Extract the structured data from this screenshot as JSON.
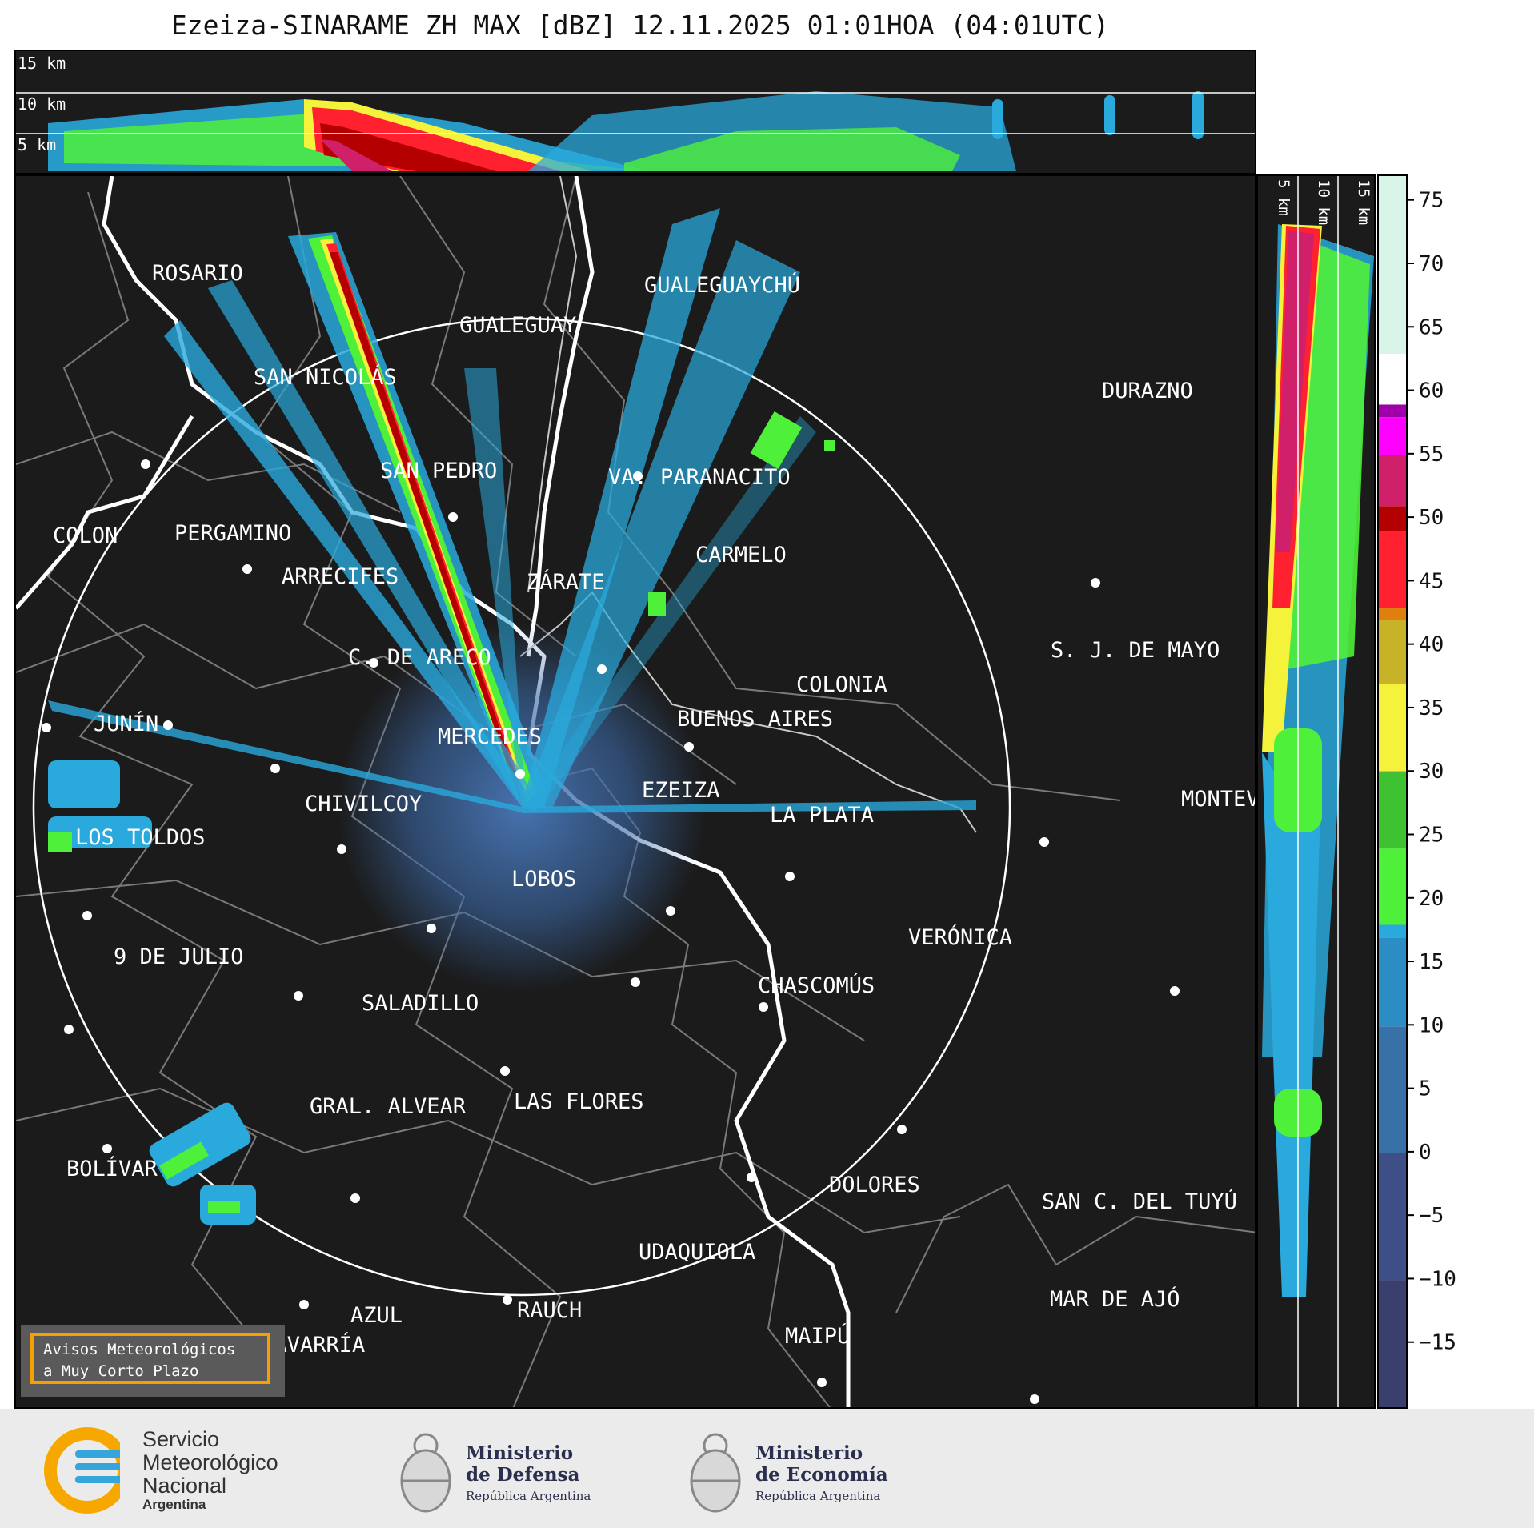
{
  "title": "Ezeiza-SINARAME ZH MAX [dBZ] 12.11.2025 01:01HOA (04:01UTC)",
  "height_labels": [
    "15 km",
    "10 km",
    "5 km"
  ],
  "colorbar": {
    "ticks": [
      "75",
      "70",
      "65",
      "60",
      "55",
      "50",
      "45",
      "40",
      "35",
      "30",
      "25",
      "20",
      "15",
      "10",
      "5",
      "0",
      "−5",
      "−10",
      "−15"
    ],
    "range": [
      -20,
      77
    ],
    "unit": "dBZ",
    "stops": [
      {
        "v": -20,
        "color": "#3b3f6e"
      },
      {
        "v": -10,
        "color": "#3d4f86"
      },
      {
        "v": 0,
        "color": "#3870a8"
      },
      {
        "v": 10,
        "color": "#2c8cc4"
      },
      {
        "v": 17,
        "color": "#29a9dc"
      },
      {
        "v": 18,
        "color": "#4ff03a"
      },
      {
        "v": 24,
        "color": "#3ec232"
      },
      {
        "v": 30,
        "color": "#236e22"
      },
      {
        "v": 30.1,
        "color": "#f4f23a"
      },
      {
        "v": 37,
        "color": "#c8b228"
      },
      {
        "v": 42,
        "color": "#e07f10"
      },
      {
        "v": 43,
        "color": "#ff2030"
      },
      {
        "v": 49,
        "color": "#b40000"
      },
      {
        "v": 51,
        "color": "#d0206a"
      },
      {
        "v": 55,
        "color": "#ff00ff"
      },
      {
        "v": 58,
        "color": "#a000a8"
      },
      {
        "v": 59,
        "color": "#ffffff"
      },
      {
        "v": 63,
        "color": "#d8f5e8"
      },
      {
        "v": 77,
        "color": "#84e0b8"
      }
    ]
  },
  "radar": {
    "name": "EZEIZA",
    "range_ring": "circle"
  },
  "cities": [
    {
      "name": "ROSARIO"
    },
    {
      "name": "GUALEGUAYCHÚ"
    },
    {
      "name": "GUALEGUAY"
    },
    {
      "name": "SAN NICOLÁS"
    },
    {
      "name": "DURAZNO"
    },
    {
      "name": "SAN PEDRO"
    },
    {
      "name": "VA. PARANACITO"
    },
    {
      "name": "COLON"
    },
    {
      "name": "PERGAMINO"
    },
    {
      "name": "CARMELO"
    },
    {
      "name": "ARRECIFES"
    },
    {
      "name": "ZÁRATE"
    },
    {
      "name": "S. J. DE MAYO"
    },
    {
      "name": "C. DE ARECO"
    },
    {
      "name": "COLONIA"
    },
    {
      "name": "JUNÍN"
    },
    {
      "name": "BUENOS AIRES"
    },
    {
      "name": "MERCEDES"
    },
    {
      "name": "EZEIZA"
    },
    {
      "name": "MONTEVIDEO"
    },
    {
      "name": "CHIVILCOY"
    },
    {
      "name": "LA PLATA"
    },
    {
      "name": "LOS TOLDOS"
    },
    {
      "name": "LOBOS"
    },
    {
      "name": "VERÓNICA"
    },
    {
      "name": "9 DE JULIO"
    },
    {
      "name": "CHASCOMÚS"
    },
    {
      "name": "SALADILLO"
    },
    {
      "name": "GRAL. ALVEAR"
    },
    {
      "name": "LAS FLORES"
    },
    {
      "name": "BOLÍVAR"
    },
    {
      "name": "DOLORES"
    },
    {
      "name": "SAN C. DEL TUYÚ"
    },
    {
      "name": "UDAQUIOLA"
    },
    {
      "name": "MAR DE AJÓ"
    },
    {
      "name": "AZUL"
    },
    {
      "name": "RAUCH"
    },
    {
      "name": "MAIPÚ"
    },
    {
      "name": "OLAVARRÍA"
    }
  ],
  "alert_badge": {
    "line1": "Avisos Meteorológicos",
    "line2": "a Muy Corto Plazo"
  },
  "logos": {
    "smn": {
      "line1": "Servicio",
      "line2": "Meteorológico",
      "line3": "Nacional",
      "line4": "Argentina"
    },
    "defensa": {
      "line1": "Ministerio",
      "line2": "de Defensa",
      "sub": "República Argentina"
    },
    "economia": {
      "line1": "Ministerio",
      "line2": "de Economía",
      "sub": "República Argentina"
    }
  }
}
